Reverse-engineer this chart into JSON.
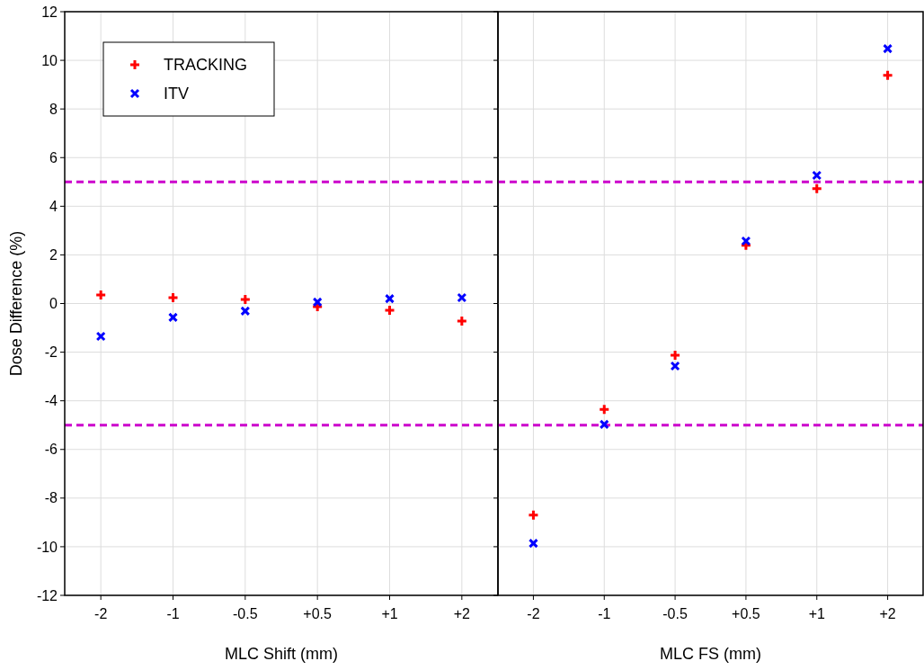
{
  "chart_data": [
    {
      "type": "scatter",
      "xlabel": "MLC Shift (mm)",
      "ylabel": "Dose Difference (%)",
      "categories": [
        "-2",
        "-1",
        "-0.5",
        "+0.5",
        "+1",
        "+2"
      ],
      "ylim": [
        -12,
        12
      ],
      "yticks": [
        -12,
        -10,
        -8,
        -6,
        -4,
        -2,
        0,
        2,
        4,
        6,
        8,
        10,
        12
      ],
      "grid": true,
      "legend": "top left",
      "series": [
        {
          "name": "TRACKING",
          "color": "#ff0000",
          "marker": "cross",
          "values": [
            0.35,
            0.24,
            0.17,
            -0.13,
            -0.28,
            -0.72
          ]
        },
        {
          "name": "ITV",
          "color": "#0000ff",
          "marker": "x",
          "values": [
            -1.35,
            -0.57,
            -0.31,
            0.06,
            0.2,
            0.24
          ]
        }
      ],
      "ref_lines": [
        {
          "axis": "y",
          "value": 5,
          "color": "#cc00cc",
          "line_style": "dashed"
        },
        {
          "axis": "y",
          "value": -5,
          "color": "#cc00cc",
          "line_style": "dashed"
        }
      ]
    },
    {
      "type": "scatter",
      "xlabel": "MLC FS (mm)",
      "categories": [
        "-2",
        "-1",
        "-0.5",
        "+0.5",
        "+1",
        "+2"
      ],
      "ylim": [
        -12,
        12
      ],
      "yticks": [
        -12,
        -10,
        -8,
        -6,
        -4,
        -2,
        0,
        2,
        4,
        6,
        8,
        10,
        12
      ],
      "grid": true,
      "tick_labels": "x",
      "series": [
        {
          "color": "#ff0000",
          "marker": "cross",
          "values": [
            -8.7,
            -4.35,
            -2.13,
            2.39,
            4.72,
            9.38
          ]
        },
        {
          "color": "#0000ff",
          "marker": "x",
          "values": [
            -9.86,
            -4.97,
            -2.57,
            2.57,
            5.27,
            10.48
          ]
        }
      ],
      "ref_lines": [
        {
          "axis": "y",
          "value": 5,
          "color": "#cc00cc",
          "line_style": "dashed"
        },
        {
          "axis": "y",
          "value": -5,
          "color": "#cc00cc",
          "line_style": "dashed"
        }
      ]
    }
  ]
}
